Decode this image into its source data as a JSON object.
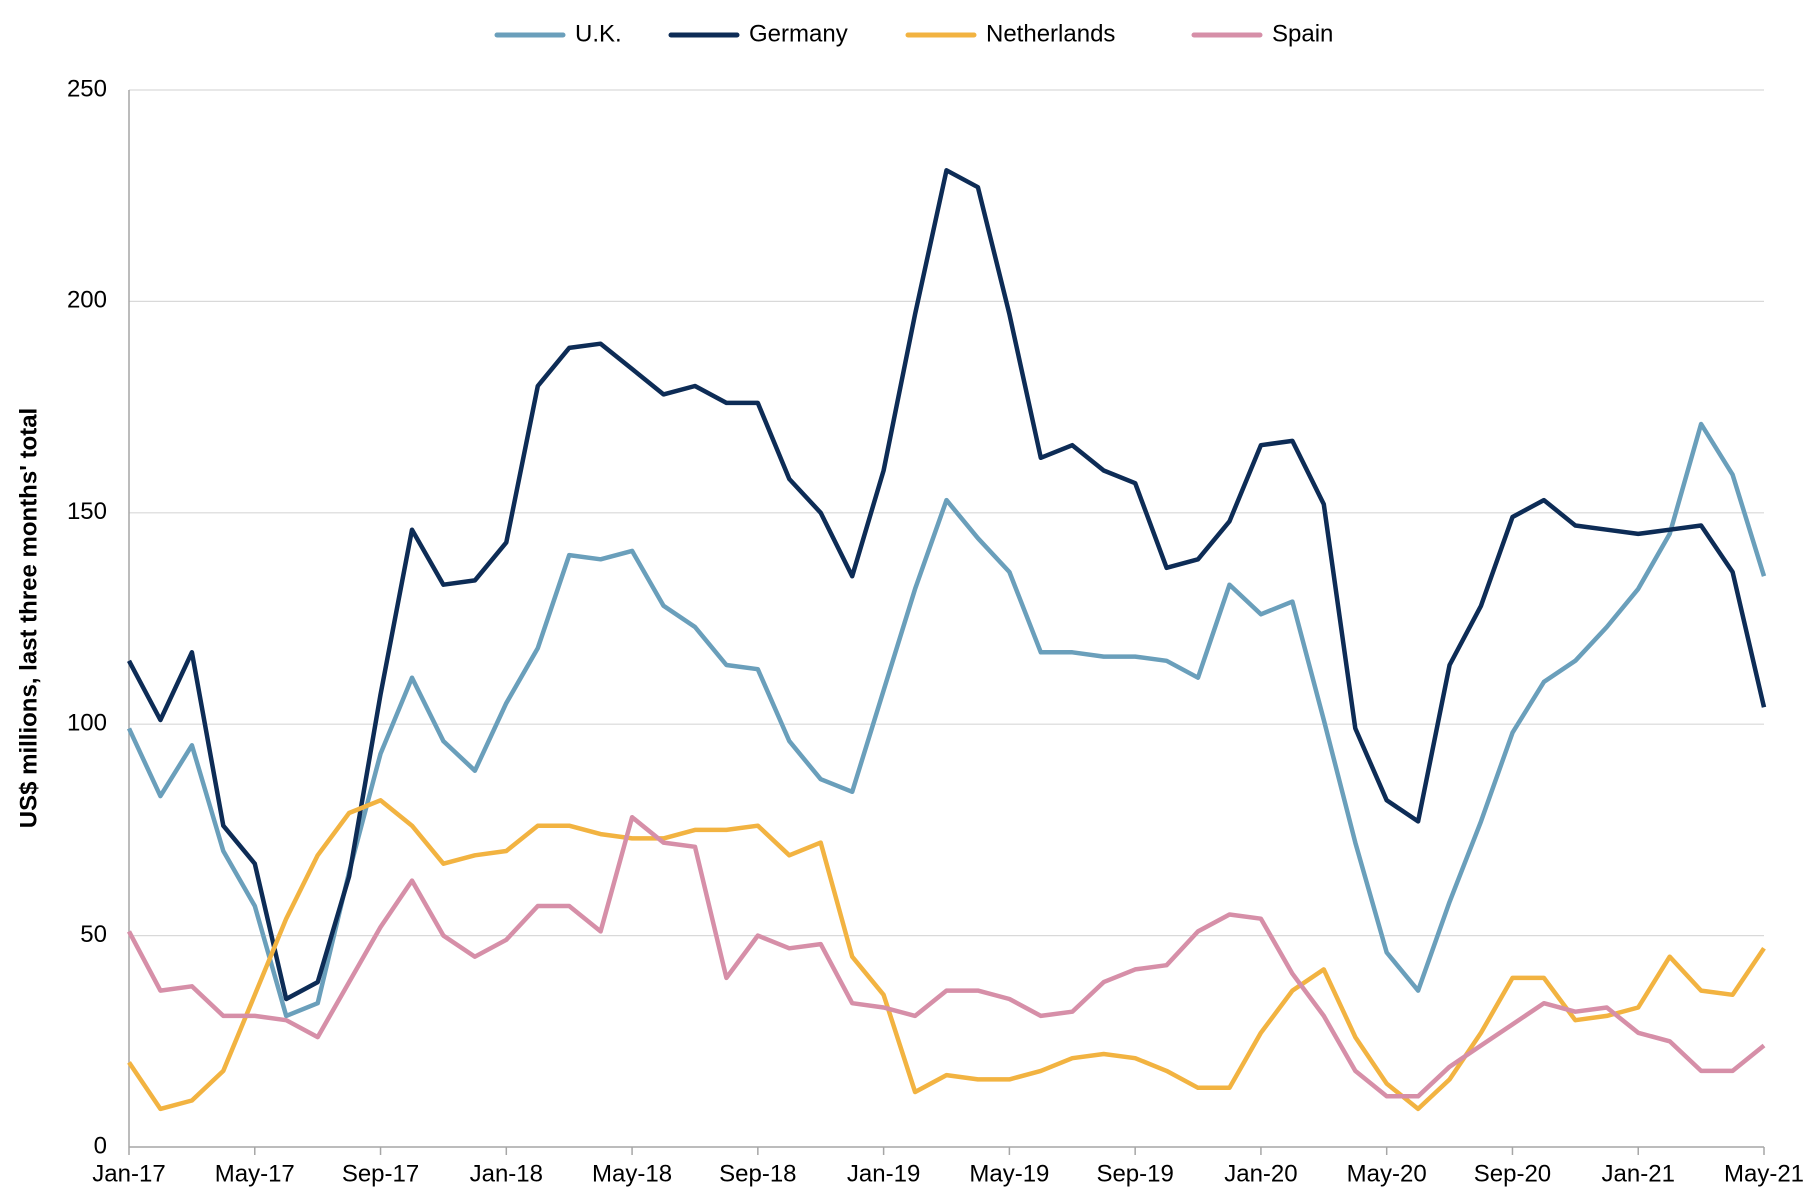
{
  "chart_data": {
    "type": "line",
    "y_label": "US$ millions, last three months' total",
    "categories": [
      "Jan-17",
      null,
      null,
      null,
      "May-17",
      null,
      null,
      null,
      "Sep-17",
      null,
      null,
      null,
      "Jan-18",
      null,
      null,
      null,
      "May-18",
      null,
      null,
      null,
      "Sep-18",
      null,
      null,
      null,
      "Jan-19",
      null,
      null,
      null,
      "May-19",
      null,
      null,
      null,
      "Sep-19",
      null,
      null,
      null,
      "Jan-20",
      null,
      null,
      null,
      "May-20",
      null,
      null,
      null,
      "Sep-20",
      null,
      null,
      null,
      "Jan-21",
      null,
      null,
      null,
      "May-21"
    ],
    "series": [
      {
        "name": "U.K.",
        "color": "#6a9fbb",
        "values": [
          99,
          83,
          95,
          70,
          57,
          31,
          34,
          65,
          93,
          111,
          96,
          89,
          105,
          118,
          140,
          139,
          141,
          128,
          123,
          114,
          113,
          96,
          87,
          84,
          108,
          132,
          153,
          144,
          136,
          117,
          117,
          116,
          116,
          115,
          111,
          133,
          126,
          129,
          101,
          72,
          46,
          37,
          58,
          77,
          98,
          110,
          115,
          123,
          132,
          145,
          171,
          159,
          135
        ]
      },
      {
        "name": "Germany",
        "color": "#0d2c56",
        "values": [
          115,
          101,
          117,
          76,
          67,
          35,
          39,
          64,
          107,
          146,
          133,
          134,
          143,
          180,
          189,
          190,
          184,
          178,
          180,
          176,
          176,
          158,
          150,
          135,
          160,
          197,
          231,
          227,
          197,
          163,
          166,
          160,
          157,
          137,
          139,
          148,
          166,
          167,
          152,
          99,
          82,
          77,
          114,
          128,
          149,
          153,
          147,
          146,
          145,
          146,
          147,
          136,
          104
        ]
      },
      {
        "name": "Netherlands",
        "color": "#f2b341",
        "values": [
          20,
          9,
          11,
          18,
          36,
          54,
          69,
          79,
          82,
          76,
          67,
          69,
          70,
          76,
          76,
          74,
          73,
          73,
          75,
          75,
          76,
          69,
          72,
          45,
          36,
          13,
          17,
          16,
          16,
          18,
          21,
          22,
          21,
          18,
          14,
          14,
          27,
          37,
          42,
          26,
          15,
          9,
          16,
          27,
          40,
          40,
          30,
          31,
          33,
          45,
          37,
          36,
          47
        ]
      },
      {
        "name": "Spain",
        "color": "#d68fa8",
        "values": [
          51,
          37,
          38,
          31,
          31,
          30,
          26,
          39,
          52,
          63,
          50,
          45,
          49,
          57,
          57,
          51,
          78,
          72,
          71,
          40,
          50,
          47,
          48,
          34,
          33,
          31,
          37,
          37,
          35,
          31,
          32,
          39,
          42,
          43,
          51,
          55,
          54,
          41,
          31,
          18,
          12,
          12,
          19,
          24,
          29,
          34,
          32,
          33,
          27,
          25,
          18,
          18,
          24
        ]
      }
    ],
    "ylim": [
      0,
      250
    ],
    "yticks": [
      0,
      50,
      100,
      150,
      200,
      250
    ],
    "grid": true,
    "legend": "top"
  }
}
